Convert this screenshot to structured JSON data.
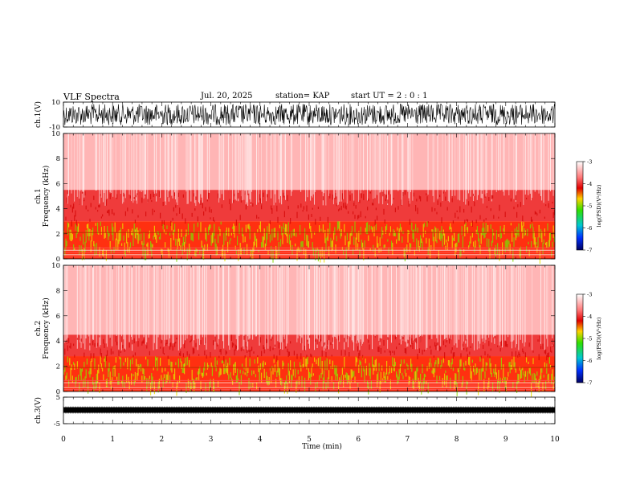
{
  "header": {
    "title": "VLF Spectra",
    "date": "Jul. 20, 2025",
    "station": "station= KAP",
    "start": "start UT =  2 : 0 : 1"
  },
  "chart_data": [
    {
      "type": "line",
      "name": "ch1-waveform",
      "ylabel": "ch.1(V)",
      "ylim": [
        -10,
        10
      ],
      "ytick_labels": [
        "10",
        "-10"
      ],
      "note": "dense noisy waveform spanning roughly -8 to 8 V"
    },
    {
      "type": "heatmap",
      "name": "ch1-spectrogram",
      "ylabel": "ch.1\nFrequency (kHz)",
      "ylabel_lines": [
        "ch.1",
        "Frequency (kHz)"
      ],
      "ylim": [
        0,
        10
      ],
      "ytick_labels": [
        "0",
        "2",
        "4",
        "6",
        "8",
        "10"
      ],
      "colorbar": {
        "label": "log(PSD)(V²/Hz)",
        "range": [
          -7,
          -3
        ],
        "tick_labels": [
          "-3",
          "-4",
          "-5",
          "-6",
          "-7"
        ]
      },
      "bands_khz": {
        "strong_below": 3.0,
        "moderate_below": 5.5,
        "line_khz": 2.1
      }
    },
    {
      "type": "heatmap",
      "name": "ch2-spectrogram",
      "ylabel": "ch.2\nFrequency (kHz)",
      "ylabel_lines": [
        "ch.2",
        "Frequency (kHz)"
      ],
      "ylim": [
        0,
        10
      ],
      "ytick_labels": [
        "0",
        "2",
        "4",
        "6",
        "8",
        "10"
      ],
      "colorbar": {
        "label": "log(PSD)(V²/Hz)",
        "range": [
          -7,
          -3
        ],
        "tick_labels": [
          "-3",
          "-4",
          "-5",
          "-6",
          "-7"
        ]
      },
      "bands_khz": {
        "strong_below": 2.8,
        "moderate_below": 4.5,
        "line_khz": 1.9
      }
    },
    {
      "type": "line",
      "name": "ch3-waveform",
      "ylabel": "ch.3(V)",
      "ylim": [
        -5,
        5
      ],
      "ytick_labels": [
        "5",
        "-5"
      ],
      "note": "narrow signal near 0 V"
    }
  ],
  "xaxis": {
    "label": "Time (min)",
    "range": [
      0,
      10
    ],
    "tick_labels": [
      "0",
      "1",
      "2",
      "3",
      "4",
      "5",
      "6",
      "7",
      "8",
      "9",
      "10"
    ]
  },
  "colors": {
    "strong": "#7fd800",
    "moderate": "#e60000",
    "weak": "#ff6666",
    "background": "#ffffff"
  }
}
